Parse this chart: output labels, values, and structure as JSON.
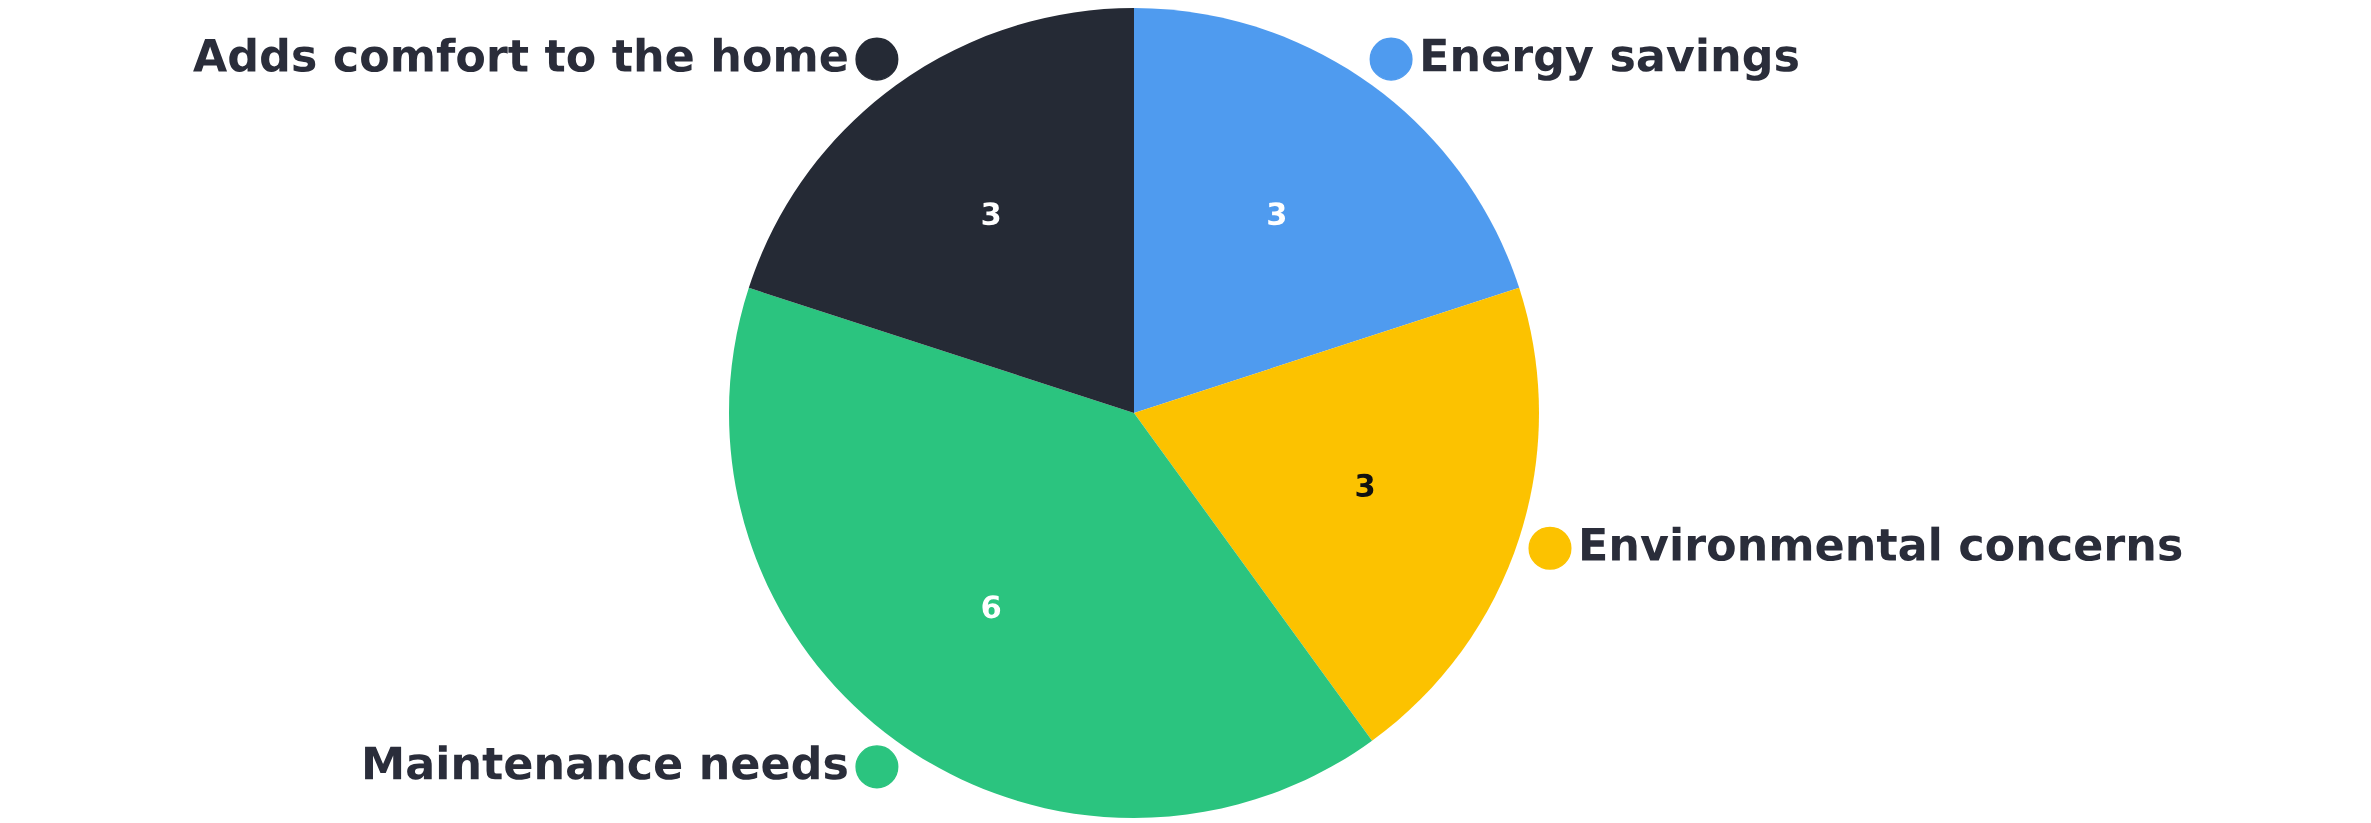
{
  "chart_data": {
    "type": "pie",
    "categories": [
      "Energy savings",
      "Environmental concerns",
      "Maintenance needs",
      "Adds comfort to the home"
    ],
    "values": [
      3,
      3,
      6,
      3
    ],
    "colors": [
      "#4f9bef",
      "#fcc200",
      "#2bc47f",
      "#252a35"
    ],
    "data_labels": true,
    "legend": "right"
  }
}
